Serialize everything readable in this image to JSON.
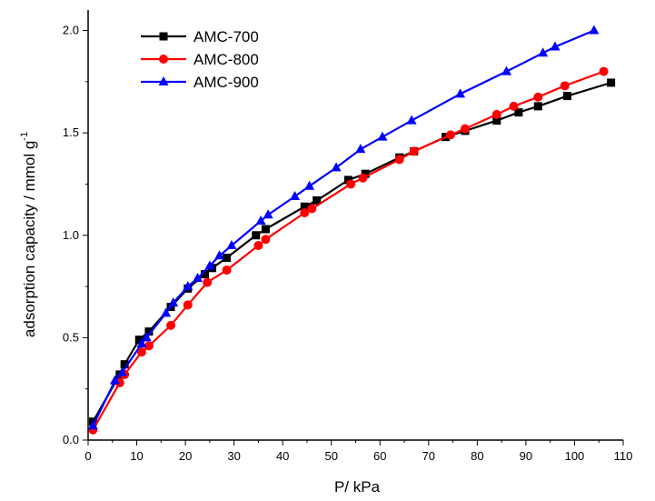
{
  "chart_data": {
    "type": "line",
    "xlabel": "P/ kPa",
    "ylabel": "adsorption capacity / mmol g",
    "ylabel_superscript": "-1",
    "xlim": [
      0,
      110
    ],
    "ylim": [
      0,
      2.1
    ],
    "x_ticks": [
      "0",
      "10",
      "20",
      "30",
      "40",
      "50",
      "60",
      "70",
      "80",
      "90",
      "100",
      "110"
    ],
    "y_ticks": [
      "0.0",
      "0.5",
      "1.0",
      "1.5",
      "2.0"
    ],
    "grid": false,
    "legend_position": "top-left",
    "series": [
      {
        "name": "AMC-700",
        "color": "#000000",
        "marker": "square",
        "points": [
          [
            1,
            0.09
          ],
          [
            6.5,
            0.32
          ],
          [
            7.5,
            0.37
          ],
          [
            10.5,
            0.49
          ],
          [
            12.5,
            0.53
          ],
          [
            17,
            0.65
          ],
          [
            20.5,
            0.74
          ],
          [
            24,
            0.81
          ],
          [
            25.5,
            0.84
          ],
          [
            28.5,
            0.89
          ],
          [
            34.5,
            1.0
          ],
          [
            36.5,
            1.03
          ],
          [
            44.5,
            1.14
          ],
          [
            47,
            1.17
          ],
          [
            53.5,
            1.27
          ],
          [
            57,
            1.3
          ],
          [
            64,
            1.38
          ],
          [
            67,
            1.41
          ],
          [
            73.5,
            1.48
          ],
          [
            77.5,
            1.51
          ],
          [
            84,
            1.56
          ],
          [
            88.5,
            1.6
          ],
          [
            92.5,
            1.63
          ],
          [
            98.5,
            1.68
          ],
          [
            107.5,
            1.745
          ]
        ]
      },
      {
        "name": "AMC-800",
        "color": "#ff0000",
        "marker": "circle",
        "points": [
          [
            1,
            0.05
          ],
          [
            6.5,
            0.28
          ],
          [
            7.5,
            0.32
          ],
          [
            11,
            0.43
          ],
          [
            12.5,
            0.46
          ],
          [
            17,
            0.56
          ],
          [
            20.5,
            0.66
          ],
          [
            24.5,
            0.77
          ],
          [
            28.5,
            0.83
          ],
          [
            35,
            0.95
          ],
          [
            36.5,
            0.98
          ],
          [
            44.5,
            1.11
          ],
          [
            46,
            1.13
          ],
          [
            54,
            1.25
          ],
          [
            56.5,
            1.28
          ],
          [
            64,
            1.37
          ],
          [
            67,
            1.41
          ],
          [
            74.5,
            1.49
          ],
          [
            77.5,
            1.52
          ],
          [
            84,
            1.59
          ],
          [
            87.5,
            1.63
          ],
          [
            92.5,
            1.675
          ],
          [
            98,
            1.73
          ],
          [
            106,
            1.8
          ]
        ]
      },
      {
        "name": "AMC-900",
        "color": "#0000ff",
        "marker": "triangle",
        "points": [
          [
            1,
            0.07
          ],
          [
            5.5,
            0.29
          ],
          [
            7,
            0.33
          ],
          [
            11,
            0.47
          ],
          [
            12,
            0.5
          ],
          [
            16,
            0.62
          ],
          [
            17.5,
            0.67
          ],
          [
            20.5,
            0.75
          ],
          [
            22.5,
            0.79
          ],
          [
            25,
            0.85
          ],
          [
            27,
            0.9
          ],
          [
            29.5,
            0.95
          ],
          [
            35.5,
            1.07
          ],
          [
            37,
            1.1
          ],
          [
            42.5,
            1.19
          ],
          [
            45.5,
            1.24
          ],
          [
            51,
            1.33
          ],
          [
            56,
            1.42
          ],
          [
            60.5,
            1.48
          ],
          [
            66.5,
            1.56
          ],
          [
            76.5,
            1.69
          ],
          [
            86,
            1.8
          ],
          [
            93.5,
            1.89
          ],
          [
            96,
            1.92
          ],
          [
            104,
            2.0
          ]
        ]
      }
    ]
  }
}
